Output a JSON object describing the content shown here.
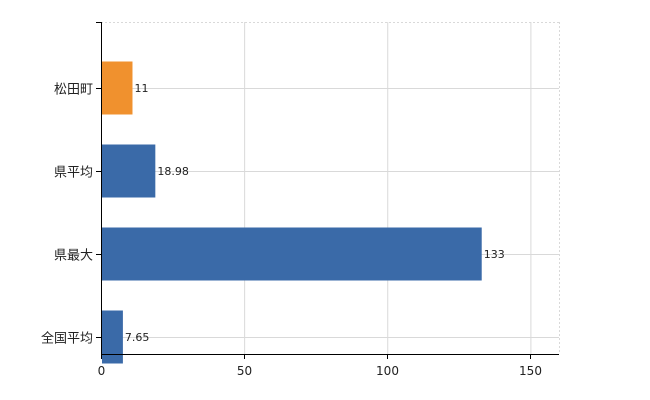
{
  "chart_data": {
    "type": "bar",
    "orientation": "horizontal",
    "categories": [
      "松田町",
      "県平均",
      "県最大",
      "全国平均"
    ],
    "values": [
      11,
      18.98,
      133,
      7.65
    ],
    "data_labels": [
      "11",
      "18.98",
      "133",
      "7.65"
    ],
    "bar_colors": [
      "#f0912e",
      "#3a6aa8",
      "#3a6aa8",
      "#3a6aa8"
    ],
    "highlight_color": "#f0912e",
    "base_color": "#3a6aa8",
    "xlim": [
      0,
      160
    ],
    "x_ticks": [
      0,
      50,
      100,
      150
    ],
    "x_tick_labels": [
      "0",
      "50",
      "100",
      "150"
    ],
    "grid": true,
    "title": "",
    "xlabel": "",
    "ylabel": ""
  }
}
